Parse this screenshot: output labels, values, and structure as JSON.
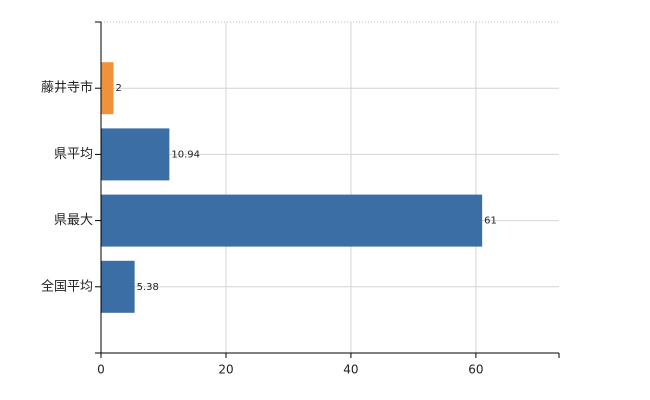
{
  "chart_data": {
    "type": "hbar",
    "categories": [
      "藤井寺市",
      "県平均",
      "県最大",
      "全国平均"
    ],
    "values": [
      2,
      10.94,
      61,
      5.38
    ],
    "colors": [
      "#f0923a",
      "#3a6ea5",
      "#3a6ea5",
      "#3a6ea5"
    ],
    "xlim": [
      0,
      73.3
    ],
    "xticks": [
      0,
      20,
      40,
      60
    ],
    "grid": true
  }
}
